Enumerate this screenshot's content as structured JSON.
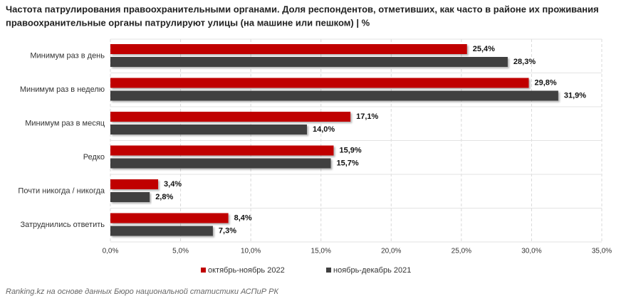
{
  "chart_data": {
    "type": "hbar",
    "title": [
      "Частота патрулирования правоохранительными органами. Доля респондентов, отметивших, как часто в районе их проживания",
      "правоохранительные органы патрулируют улицы (на машине или пешком) | %"
    ],
    "categories": [
      "Минимум раз в день",
      "Минимум раз в неделю",
      "Минимум раз в месяц",
      "Редко",
      "Почти никогда / никогда",
      "Затруднились ответить"
    ],
    "series": [
      {
        "name": "октябрь-ноябрь 2022",
        "color": "#c00000",
        "values": [
          25.4,
          29.8,
          17.1,
          15.9,
          3.4,
          8.4
        ],
        "value_labels": [
          "25,4%",
          "29,8%",
          "17,1%",
          "15,9%",
          "3,4%",
          "8,4%"
        ]
      },
      {
        "name": "ноябрь-декабрь 2021",
        "color": "#404040",
        "values": [
          28.3,
          31.9,
          14.0,
          15.7,
          2.8,
          7.3
        ],
        "value_labels": [
          "28,3%",
          "31,9%",
          "14,0%",
          "15,7%",
          "2,8%",
          "7,3%"
        ]
      }
    ],
    "xlim": [
      0,
      35
    ],
    "xticks": [
      {
        "value": 0,
        "label": "0,0%"
      },
      {
        "value": 5,
        "label": "5,0%"
      },
      {
        "value": 10,
        "label": "10,0%"
      },
      {
        "value": 15,
        "label": "15,0%"
      },
      {
        "value": 20,
        "label": "20,0%"
      },
      {
        "value": 25,
        "label": "25,0%"
      },
      {
        "value": 30,
        "label": "30,0%"
      },
      {
        "value": 35,
        "label": "35,0%"
      }
    ],
    "grid": true,
    "legend": "bottom",
    "source": "Ranking.kz на основе данных Бюро национальной статистики АСПиР РК"
  }
}
